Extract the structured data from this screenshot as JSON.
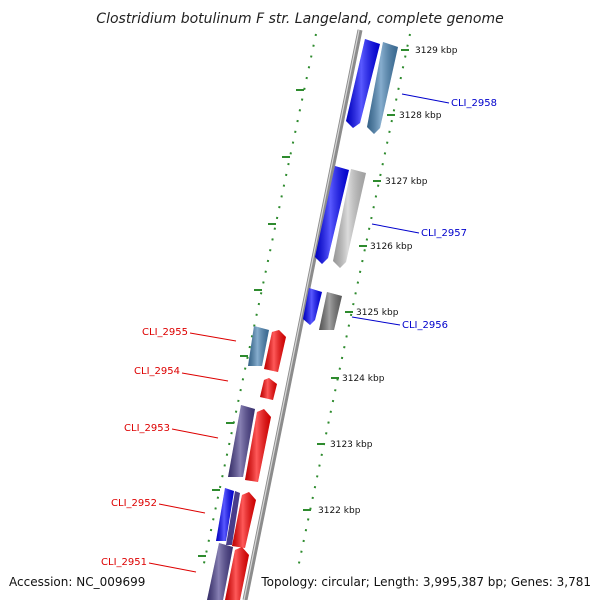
{
  "title": "Clostridium botulinum F str. Langeland, complete genome",
  "footer": {
    "accession": "Accession: NC_009699",
    "topology": "Topology: circular; Length: 3,995,387 bp; Genes: 3,781"
  },
  "colors": {
    "backbone": "#8c8c8c",
    "tick_dots": "#2e8b2e",
    "forward_label": "#0000cc",
    "reverse_label": "#dd0000",
    "red_gene": "#ff0000",
    "blue_gene": "#0000ff",
    "steel_gene": "#4682b4",
    "slate_gene": "#483d8b",
    "silver_gene": "#c8c8c8",
    "gray_gene": "#707070"
  },
  "scale_labels": [
    "3129 kbp",
    "3128 kbp",
    "3127 kbp",
    "3126 kbp",
    "3125 kbp",
    "3124 kbp",
    "3123 kbp",
    "3122 kbp"
  ],
  "gene_labels": {
    "forward": [
      "CLI_2958",
      "CLI_2957",
      "CLI_2956"
    ],
    "reverse": [
      "CLI_2955",
      "CLI_2954",
      "CLI_2953",
      "CLI_2952",
      "CLI_2951"
    ]
  }
}
